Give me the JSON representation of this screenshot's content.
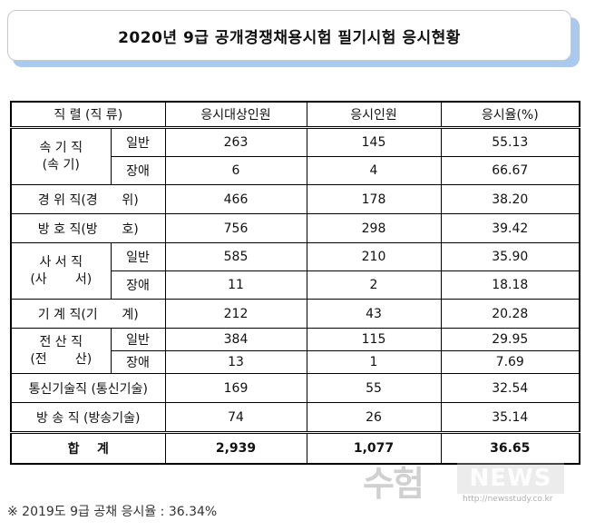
{
  "title": "2020년  9급  공개경쟁채용시험  필기시험  응시현황",
  "table": {
    "headers": [
      "직  렬 (직 류)",
      "응시대상인원",
      "응시인원",
      "응시율(%)"
    ],
    "groups": [
      {
        "label": "속 기 직",
        "sub": "(속       기)",
        "rows": [
          {
            "type": "일반",
            "target": "263",
            "applied": "145",
            "rate": "55.13"
          },
          {
            "type": "장애",
            "target": "6",
            "applied": "4",
            "rate": "66.67"
          }
        ]
      },
      {
        "label": "경 위 직(경      위)",
        "target": "466",
        "applied": "178",
        "rate": "38.20"
      },
      {
        "label": "방 호 직(방      호)",
        "target": "756",
        "applied": "298",
        "rate": "39.42"
      },
      {
        "label": "사 서 직",
        "sub": "(사       서)",
        "rows": [
          {
            "type": "일반",
            "target": "585",
            "applied": "210",
            "rate": "35.90"
          },
          {
            "type": "장애",
            "target": "11",
            "applied": "2",
            "rate": "18.18"
          }
        ]
      },
      {
        "label": "기 계 직(기      계)",
        "target": "212",
        "applied": "43",
        "rate": "20.28"
      },
      {
        "label": "전 산 직",
        "sub": "(전       산)",
        "rows": [
          {
            "type": "일반",
            "target": "384",
            "applied": "115",
            "rate": "29.95"
          },
          {
            "type": "장애",
            "target": "13",
            "applied": "1",
            "rate": "7.69"
          }
        ]
      },
      {
        "label": "통신기술직 (통신기술)",
        "target": "169",
        "applied": "55",
        "rate": "32.54"
      },
      {
        "label": "방 송 직 (방송기술)",
        "target": "74",
        "applied": "26",
        "rate": "35.14"
      }
    ],
    "total": {
      "label": "합    계",
      "target": "2,939",
      "applied": "1,077",
      "rate": "36.65"
    }
  },
  "watermark": {
    "brand": "수험",
    "news": "NEWS",
    "url": "http://newsstudy.co.kr"
  },
  "footnote": "※ 2019도 9급 공채 응시율 : 36.34%"
}
